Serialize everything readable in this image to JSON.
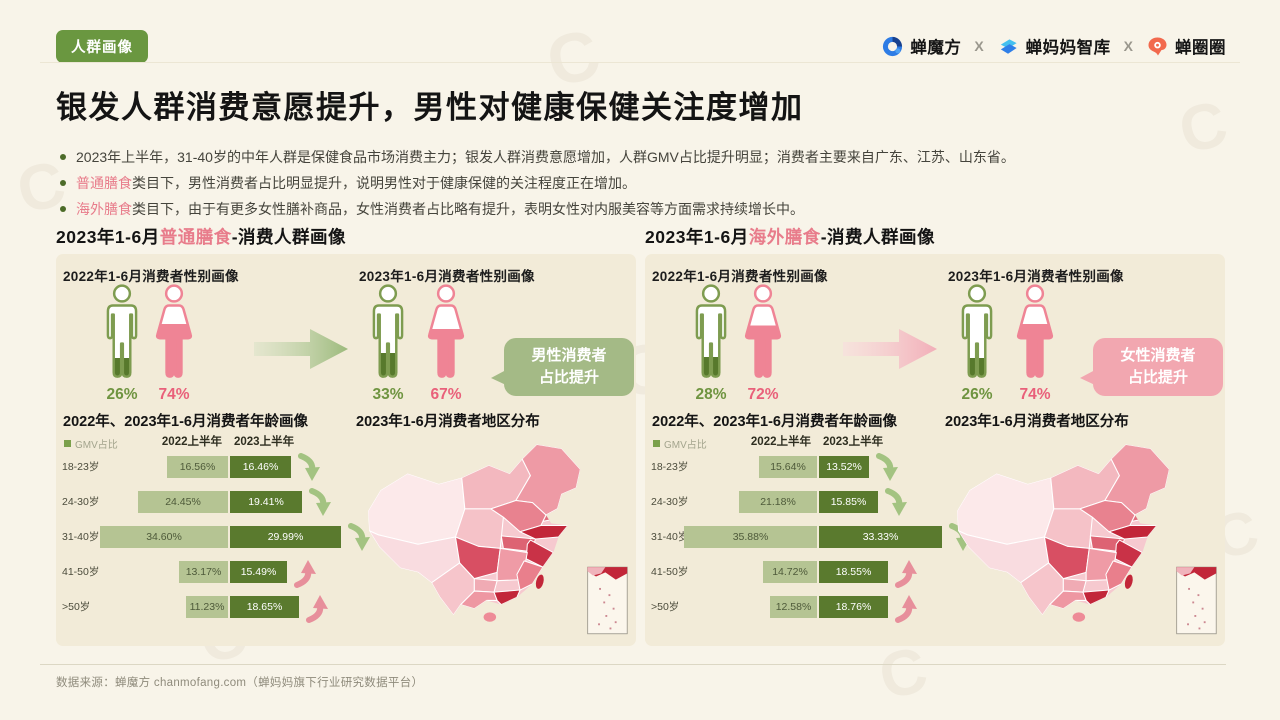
{
  "header": {
    "badge": "人群画像",
    "logos": [
      {
        "name": "蝉魔方",
        "icon": "chanmofang-logo"
      },
      {
        "name": "蝉妈妈智库",
        "icon": "chanmama-zhiku-logo"
      },
      {
        "name": "蝉圈圈",
        "icon": "chanquanquan-logo"
      }
    ],
    "logo_separator": "X"
  },
  "title": "银发人群消费意愿提升，男性对健康保健关注度增加",
  "bullets": [
    {
      "highlight": "",
      "text": "2023年上半年，31-40岁的中年人群是保健食品市场消费主力；银发人群消费意愿增加，人群GMV占比提升明显；消费者主要来自广东、江苏、山东省。"
    },
    {
      "highlight": "普通膳食",
      "text": "类目下，男性消费者占比明显提升，说明男性对于健康保健的关注程度正在增加。"
    },
    {
      "highlight": "海外膳食",
      "text": "类目下，由于有更多女性膳补商品，女性消费者占比略有提升，表明女性对内服美容等方面需求持续增长中。"
    }
  ],
  "footer": "数据来源：蝉魔方 chanmofang.com（蝉妈妈旗下行业研究数据平台）",
  "colors": {
    "badge_green": "#6a9740",
    "accent_pink": "#e87c8b",
    "male_stroke": "#7e9c50",
    "male_fill": "#57792c",
    "female_pink": "#ef8495",
    "bar_2022": "#b5c493",
    "bar_2023": "#5a7a2e",
    "trend_up": "#e78f9b",
    "trend_down": "#a3c381",
    "arrow_green_from": "#d9e2c6",
    "arrow_green_to": "#9cba7c",
    "arrow_pink_from": "#f9dcdf",
    "arrow_pink_to": "#f2aeb8",
    "panel_bg": "#f2ebd8",
    "page_bg": "#f8f4e9",
    "map_palette": {
      "base": "#f6c9cf",
      "lightest": "#fce9ea",
      "light": "#f9dce0",
      "mid": "#f0aab3",
      "dark": "#d84f63",
      "darkest": "#c22639"
    }
  },
  "panels": [
    {
      "header": {
        "prefix": "2023年1-6月",
        "highlight": "普通膳食",
        "suffix": "-消费人群画像"
      },
      "gender": {
        "y2022": {
          "title": "2022年1-6月消费者性别画像",
          "male_value": 26,
          "female_value": 74,
          "male_pct": "26%",
          "female_pct": "74%"
        },
        "y2023": {
          "title": "2023年1-6月消费者性别画像",
          "male_value": 33,
          "female_value": 67,
          "male_pct": "33%",
          "female_pct": "67%"
        },
        "arrow_theme": "green",
        "callout_theme": "green",
        "callout_line1": "男性消费者",
        "callout_line2": "占比提升"
      },
      "age_chart_title": "2022年、2023年1-6月消费者年龄画像",
      "age_legend": "GMV占比",
      "age_col_headers": [
        "2022上半年",
        "2023上半年"
      ],
      "map_title": "2023年1-6月消费者地区分布"
    },
    {
      "header": {
        "prefix": "2023年1-6月",
        "highlight": "海外膳食",
        "suffix": "-消费人群画像"
      },
      "gender": {
        "y2022": {
          "title": "2022年1-6月消费者性别画像",
          "male_value": 28,
          "female_value": 72,
          "male_pct": "28%",
          "female_pct": "72%"
        },
        "y2023": {
          "title": "2023年1-6月消费者性别画像",
          "male_value": 26,
          "female_value": 74,
          "male_pct": "26%",
          "female_pct": "74%"
        },
        "arrow_theme": "pink",
        "callout_theme": "pink",
        "callout_line1": "女性消费者",
        "callout_line2": "占比提升"
      },
      "age_chart_title": "2022年、2023年1-6月消费者年龄画像",
      "age_legend": "GMV占比",
      "age_col_headers": [
        "2022上半年",
        "2023上半年"
      ],
      "map_title": "2023年1-6月消费者地区分布"
    }
  ],
  "chart_data": [
    {
      "type": "pie",
      "title": "普通膳食 2022年1-6月消费者性别画像",
      "labels": [
        "男性",
        "女性"
      ],
      "values": [
        26,
        74
      ],
      "unit": "%"
    },
    {
      "type": "pie",
      "title": "普通膳食 2023年1-6月消费者性别画像",
      "labels": [
        "男性",
        "女性"
      ],
      "values": [
        33,
        67
      ],
      "unit": "%"
    },
    {
      "type": "pie",
      "title": "海外膳食 2022年1-6月消费者性别画像",
      "labels": [
        "男性",
        "女性"
      ],
      "values": [
        28,
        72
      ],
      "unit": "%"
    },
    {
      "type": "pie",
      "title": "海外膳食 2023年1-6月消费者性别画像",
      "labels": [
        "男性",
        "女性"
      ],
      "values": [
        26,
        74
      ],
      "unit": "%"
    },
    {
      "type": "bar",
      "title": "普通膳食 2022年、2023年1-6月消费者年龄画像（GMV占比）",
      "categories": [
        "18-23岁",
        "24-30岁",
        "31-40岁",
        "41-50岁",
        ">50岁"
      ],
      "series": [
        {
          "name": "2022上半年",
          "values": [
            16.56,
            24.45,
            34.6,
            13.17,
            11.23
          ]
        },
        {
          "name": "2023上半年",
          "values": [
            16.46,
            19.41,
            29.99,
            15.49,
            18.65
          ]
        }
      ],
      "trends": [
        "down",
        "down",
        "down",
        "up",
        "up"
      ],
      "unit": "%",
      "legend_position": "top-left"
    },
    {
      "type": "bar",
      "title": "海外膳食 2022年、2023年1-6月消费者年龄画像（GMV占比）",
      "categories": [
        "18-23岁",
        "24-30岁",
        "31-40岁",
        "41-50岁",
        ">50岁"
      ],
      "series": [
        {
          "name": "2022上半年",
          "values": [
            15.64,
            21.18,
            35.88,
            14.72,
            12.58
          ]
        },
        {
          "name": "2023上半年",
          "values": [
            13.52,
            15.85,
            33.33,
            18.55,
            18.76
          ]
        }
      ],
      "trends": [
        "down",
        "down",
        "down",
        "up",
        "up"
      ],
      "unit": "%",
      "legend_position": "top-left"
    },
    {
      "type": "heatmap",
      "title": "2023年1-6月消费者地区分布",
      "note": "中国地图填色：颜色越深代表消费者占比越高",
      "high_regions": [
        "广东",
        "江苏",
        "山东"
      ]
    }
  ]
}
